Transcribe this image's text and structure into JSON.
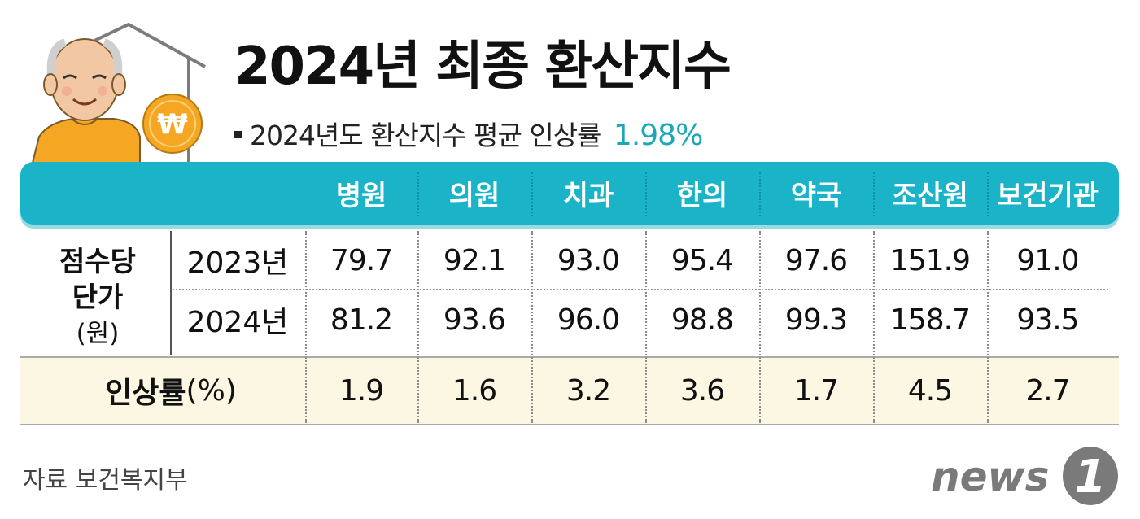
{
  "header": {
    "title": "2024년 최종 환산지수",
    "subtitle_prefix": "2024년도 환산지수 평균 인상률",
    "subtitle_value": "1.98%"
  },
  "colors": {
    "header_bar": "#1ab3c8",
    "accent_text": "#1aa7b8",
    "rate_band": "#fbf7e2",
    "coin": "#f5a623",
    "logo": "#7a7a7a"
  },
  "icons": [
    "grandfather-icon",
    "house-icon",
    "won-coin-icon"
  ],
  "chart_data": {
    "type": "table",
    "title": "2024년 최종 환산지수",
    "columns": [
      "병원",
      "의원",
      "치과",
      "한의",
      "약국",
      "조산원",
      "보건기관"
    ],
    "group_label": {
      "line1": "점수당",
      "line2": "단가",
      "unit": "(원)"
    },
    "rows": [
      {
        "label": "2023년",
        "values": [
          "79.7",
          "92.1",
          "93.0",
          "95.4",
          "97.6",
          "151.9",
          "91.0"
        ]
      },
      {
        "label": "2024년",
        "values": [
          "81.2",
          "93.6",
          "96.0",
          "98.8",
          "99.3",
          "158.7",
          "93.5"
        ]
      }
    ],
    "rate_row": {
      "label": "인상률",
      "unit": "(%)",
      "values": [
        "1.9",
        "1.6",
        "3.2",
        "3.6",
        "1.7",
        "4.5",
        "2.7"
      ]
    }
  },
  "footer": {
    "source": "자료 보건복지부",
    "logo_text": "news",
    "logo_mark": "1"
  }
}
